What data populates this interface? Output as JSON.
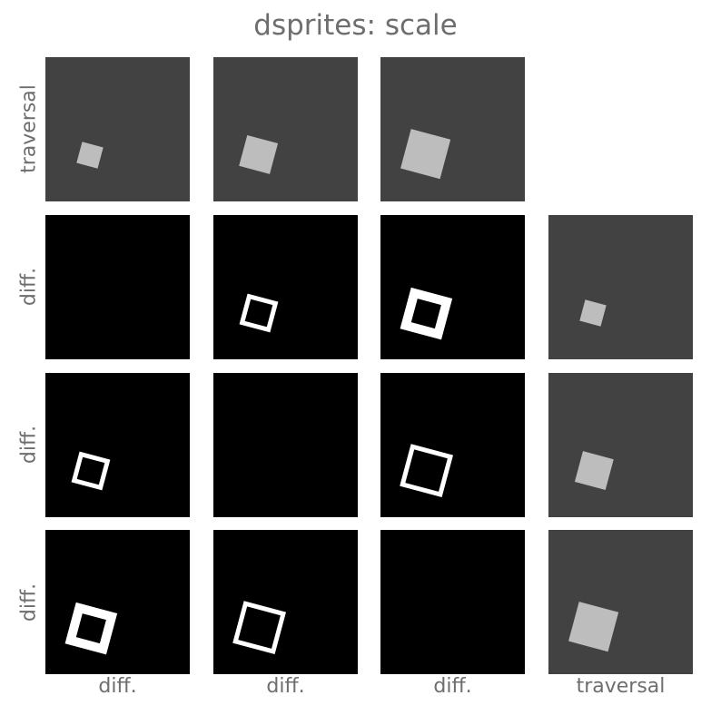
{
  "figure": {
    "title": "dsprites: scale",
    "row_labels": [
      "traversal",
      "diff.",
      "diff.",
      "diff."
    ],
    "col_labels": [
      "diff.",
      "diff.",
      "diff.",
      "traversal"
    ]
  },
  "colors": {
    "traversal_background": "#424242",
    "diff_background": "#000000",
    "shape_fill": "#bdbdbd",
    "diff_outline": "#ffffff"
  },
  "grid": [
    [
      "traversal-scale-1",
      "traversal-scale-2",
      "traversal-scale-3",
      "empty"
    ],
    [
      "diff-empty",
      "diff-ring-1-2",
      "diff-ring-1-3",
      "traversal-scale-1"
    ],
    [
      "diff-ring-1-2",
      "diff-empty",
      "diff-ring-2-3",
      "traversal-scale-2"
    ],
    [
      "diff-ring-1-3",
      "diff-ring-2-3",
      "diff-empty",
      "traversal-scale-3"
    ]
  ]
}
